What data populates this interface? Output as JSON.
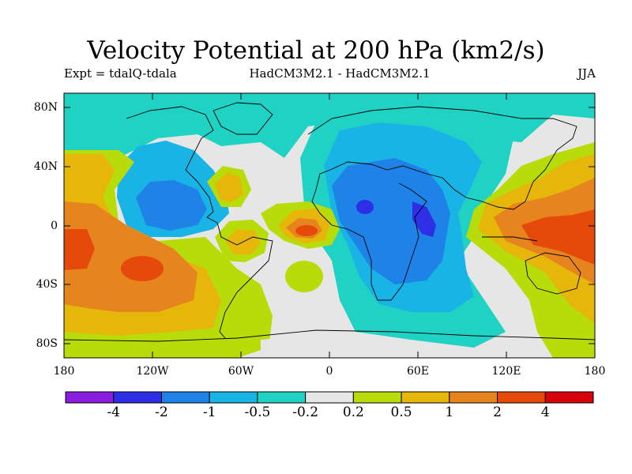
{
  "header": {
    "title": "Velocity Potential at 200 hPa (km2/s)",
    "experiment": "Expt = tdalQ-tdala",
    "models": "HadCM3M2.1 - HadCM3M2.1",
    "season": "JJA"
  },
  "map": {
    "y_ticks": [
      "80N",
      "40N",
      "0",
      "40S",
      "80S"
    ],
    "x_ticks": [
      "180",
      "120W",
      "60W",
      "0",
      "60E",
      "120E",
      "180"
    ]
  },
  "colorbar": {
    "labels": [
      "-4",
      "-2",
      "-1",
      "-0.5",
      "-0.2",
      "0.2",
      "0.5",
      "1",
      "2",
      "4"
    ],
    "colors": [
      "#8a1de0",
      "#2e2ee6",
      "#1e82e6",
      "#18b4e6",
      "#1fd2c4",
      "#e6e6e6",
      "#b8dc0a",
      "#e6b60a",
      "#e6841e",
      "#e64a0a",
      "#d8000a"
    ]
  }
}
